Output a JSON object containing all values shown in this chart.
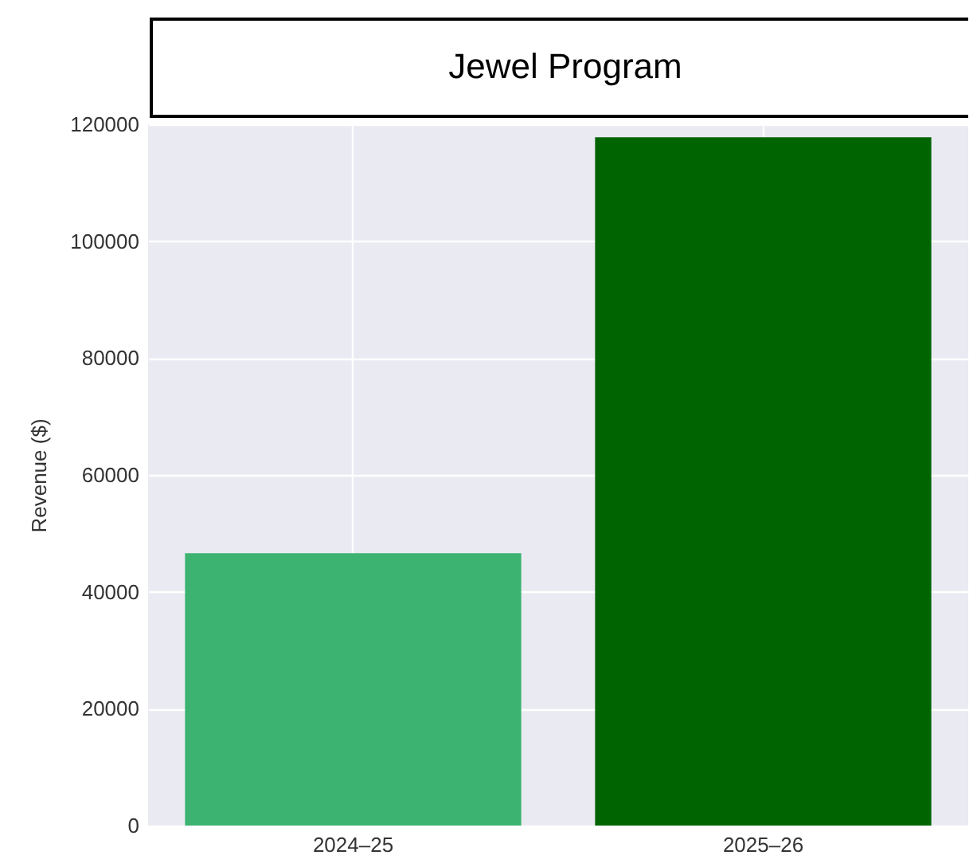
{
  "chart_data": {
    "type": "bar",
    "title": "Jewel Program",
    "ylabel": "Revenue ($)",
    "categories": [
      "2024–25",
      "2025–26"
    ],
    "values": [
      46600,
      117800
    ],
    "colors": [
      "#3cb371",
      "#006400"
    ],
    "ylim": [
      0,
      120000
    ],
    "yticks": [
      0,
      20000,
      40000,
      60000,
      80000,
      100000,
      120000
    ],
    "grid": true
  }
}
